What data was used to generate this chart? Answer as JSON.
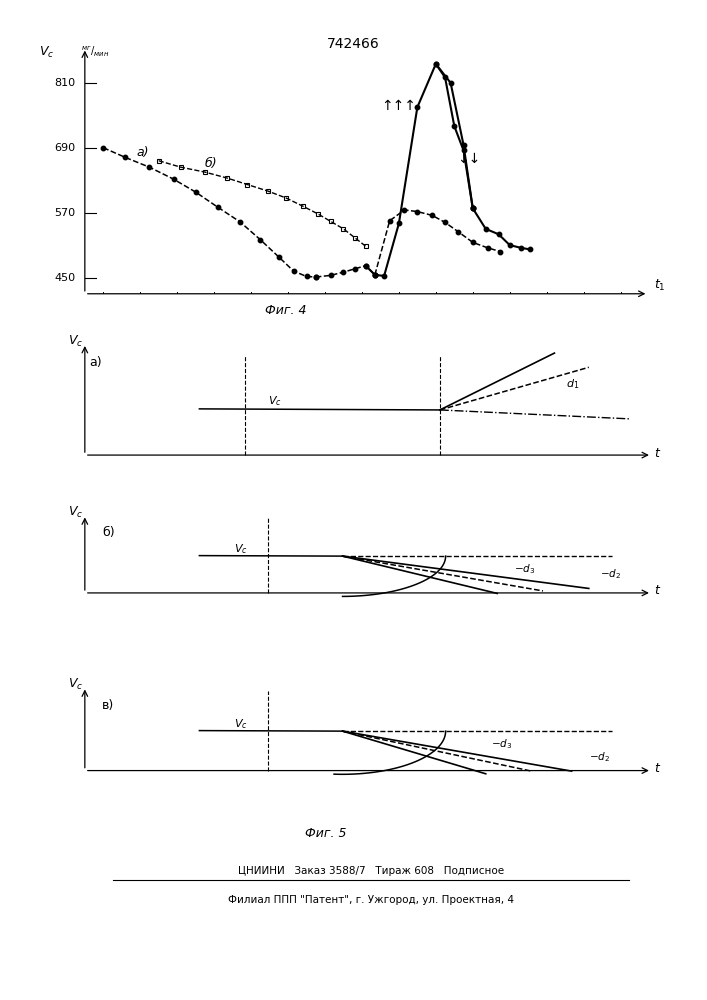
{
  "title": "742466",
  "fig4_label": "Фиг. 4",
  "fig5_label": "Фиг. 5",
  "yticks_fig4": [
    450,
    570,
    690,
    810
  ],
  "bottom_footer_line1": "ЦНИИНИ   Заказ 3588/7   Тираж 608   Подписное",
  "bottom_footer_line2": "Филиал ППП \"Патент\", г. Ужгород, ул. Проектная, 4"
}
